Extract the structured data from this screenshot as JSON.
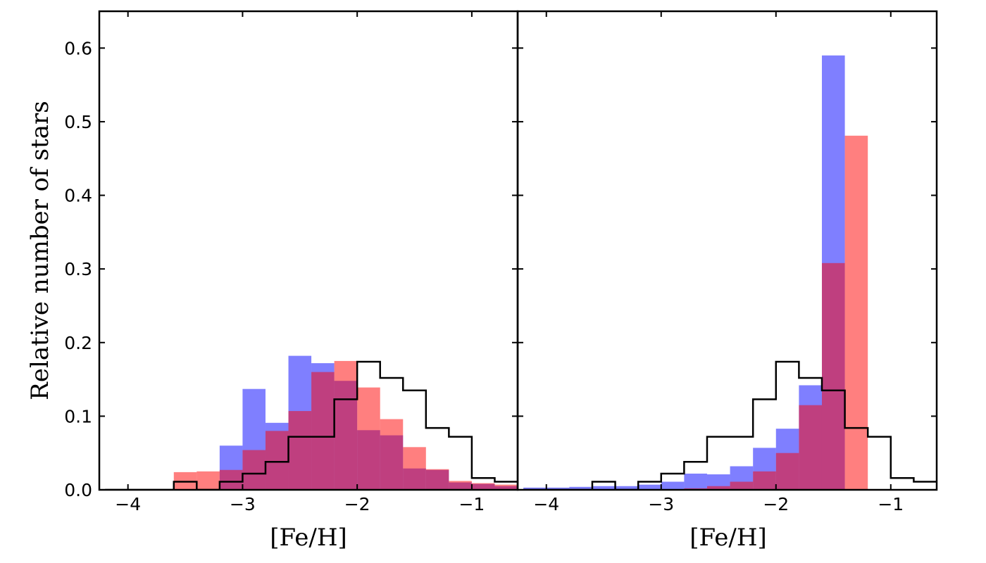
{
  "chart_data": [
    {
      "type": "histogram",
      "panel": "left",
      "xlabel": "[Fe/H]",
      "ylabel": "Relative number of stars",
      "xlim": [
        -4.25,
        -0.6
      ],
      "ylim": [
        0,
        0.65
      ],
      "xticks": [
        -4,
        -3,
        -2,
        -1
      ],
      "xtick_labels": [
        "−4",
        "−3",
        "−2",
        "−1"
      ],
      "yticks": [
        0.0,
        0.1,
        0.2,
        0.3,
        0.4,
        0.5,
        0.6
      ],
      "ytick_labels": [
        "0.0",
        "0.1",
        "0.2",
        "0.3",
        "0.4",
        "0.5",
        "0.6"
      ],
      "grid": false,
      "series": [
        {
          "style": "filled",
          "color": "#0000ff",
          "opacity": 0.5,
          "bins": [
            [
              -3.2,
              -3.0,
              0.06
            ],
            [
              -3.0,
              -2.8,
              0.137
            ],
            [
              -2.8,
              -2.6,
              0.091
            ],
            [
              -2.6,
              -2.4,
              0.182
            ],
            [
              -2.4,
              -2.2,
              0.172
            ],
            [
              -2.2,
              -2.0,
              0.148
            ],
            [
              -2.0,
              -1.8,
              0.081
            ],
            [
              -1.8,
              -1.6,
              0.074
            ],
            [
              -1.6,
              -1.4,
              0.029
            ],
            [
              -1.4,
              -1.2,
              0.027
            ],
            [
              -1.2,
              -1.0,
              0.01
            ],
            [
              -1.0,
              -0.8,
              0.008
            ],
            [
              -0.8,
              -0.6,
              0.005
            ]
          ]
        },
        {
          "style": "filled",
          "color": "#ff0000",
          "opacity": 0.5,
          "bins": [
            [
              -3.6,
              -3.4,
              0.024
            ],
            [
              -3.4,
              -3.2,
              0.025
            ],
            [
              -3.2,
              -3.0,
              0.027
            ],
            [
              -3.0,
              -2.8,
              0.054
            ],
            [
              -2.8,
              -2.6,
              0.08
            ],
            [
              -2.6,
              -2.4,
              0.107
            ],
            [
              -2.4,
              -2.2,
              0.16
            ],
            [
              -2.2,
              -2.0,
              0.175
            ],
            [
              -2.0,
              -1.8,
              0.139
            ],
            [
              -1.8,
              -1.6,
              0.096
            ],
            [
              -1.6,
              -1.4,
              0.058
            ],
            [
              -1.4,
              -1.2,
              0.028
            ],
            [
              -1.2,
              -1.0,
              0.012
            ],
            [
              -1.0,
              -0.8,
              0.009
            ],
            [
              -0.8,
              -0.6,
              0.007
            ]
          ]
        },
        {
          "style": "step",
          "color": "#000000",
          "bins": [
            [
              -4.2,
              -3.6,
              0.0
            ],
            [
              -3.6,
              -3.4,
              0.011
            ],
            [
              -3.4,
              -3.2,
              0.0
            ],
            [
              -3.2,
              -3.0,
              0.011
            ],
            [
              -3.0,
              -2.8,
              0.022
            ],
            [
              -2.8,
              -2.6,
              0.038
            ],
            [
              -2.6,
              -2.4,
              0.072
            ],
            [
              -2.4,
              -2.2,
              0.072
            ],
            [
              -2.2,
              -2.0,
              0.123
            ],
            [
              -2.0,
              -1.8,
              0.174
            ],
            [
              -1.8,
              -1.6,
              0.152
            ],
            [
              -1.6,
              -1.4,
              0.135
            ],
            [
              -1.4,
              -1.2,
              0.084
            ],
            [
              -1.2,
              -1.0,
              0.072
            ],
            [
              -1.0,
              -0.8,
              0.016
            ],
            [
              -0.8,
              -0.6,
              0.011
            ]
          ]
        }
      ]
    },
    {
      "type": "histogram",
      "panel": "right",
      "xlabel": "[Fe/H]",
      "ylabel": "",
      "xlim": [
        -4.25,
        -0.6
      ],
      "ylim": [
        0,
        0.65
      ],
      "xticks": [
        -4,
        -3,
        -2,
        -1
      ],
      "xtick_labels": [
        "−4",
        "−3",
        "−2",
        "−1"
      ],
      "yticks": [
        0.0,
        0.1,
        0.2,
        0.3,
        0.4,
        0.5,
        0.6
      ],
      "ytick_labels": [],
      "grid": false,
      "series": [
        {
          "style": "filled",
          "color": "#0000ff",
          "opacity": 0.5,
          "bins": [
            [
              -4.2,
              -3.8,
              0.003
            ],
            [
              -3.8,
              -3.6,
              0.004
            ],
            [
              -3.6,
              -3.4,
              0.005
            ],
            [
              -3.4,
              -3.2,
              0.005
            ],
            [
              -3.2,
              -3.0,
              0.007
            ],
            [
              -3.0,
              -2.8,
              0.011
            ],
            [
              -2.8,
              -2.6,
              0.022
            ],
            [
              -2.6,
              -2.4,
              0.021
            ],
            [
              -2.4,
              -2.2,
              0.032
            ],
            [
              -2.2,
              -2.0,
              0.057
            ],
            [
              -2.0,
              -1.8,
              0.083
            ],
            [
              -1.8,
              -1.6,
              0.142
            ],
            [
              -1.6,
              -1.4,
              0.59
            ]
          ]
        },
        {
          "style": "filled",
          "color": "#ff0000",
          "opacity": 0.5,
          "bins": [
            [
              -2.8,
              -2.6,
              0.002
            ],
            [
              -2.6,
              -2.4,
              0.005
            ],
            [
              -2.4,
              -2.2,
              0.011
            ],
            [
              -2.2,
              -2.0,
              0.025
            ],
            [
              -2.0,
              -1.8,
              0.05
            ],
            [
              -1.8,
              -1.6,
              0.115
            ],
            [
              -1.6,
              -1.4,
              0.308
            ],
            [
              -1.4,
              -1.2,
              0.481
            ]
          ]
        },
        {
          "style": "step",
          "color": "#000000",
          "bins": [
            [
              -4.2,
              -3.6,
              0.0
            ],
            [
              -3.6,
              -3.4,
              0.011
            ],
            [
              -3.4,
              -3.2,
              0.0
            ],
            [
              -3.2,
              -3.0,
              0.011
            ],
            [
              -3.0,
              -2.8,
              0.022
            ],
            [
              -2.8,
              -2.6,
              0.038
            ],
            [
              -2.6,
              -2.4,
              0.072
            ],
            [
              -2.4,
              -2.2,
              0.072
            ],
            [
              -2.2,
              -2.0,
              0.123
            ],
            [
              -2.0,
              -1.8,
              0.174
            ],
            [
              -1.8,
              -1.6,
              0.152
            ],
            [
              -1.6,
              -1.4,
              0.135
            ],
            [
              -1.4,
              -1.2,
              0.084
            ],
            [
              -1.2,
              -1.0,
              0.072
            ],
            [
              -1.0,
              -0.8,
              0.016
            ],
            [
              -0.8,
              -0.6,
              0.011
            ]
          ]
        }
      ]
    }
  ]
}
